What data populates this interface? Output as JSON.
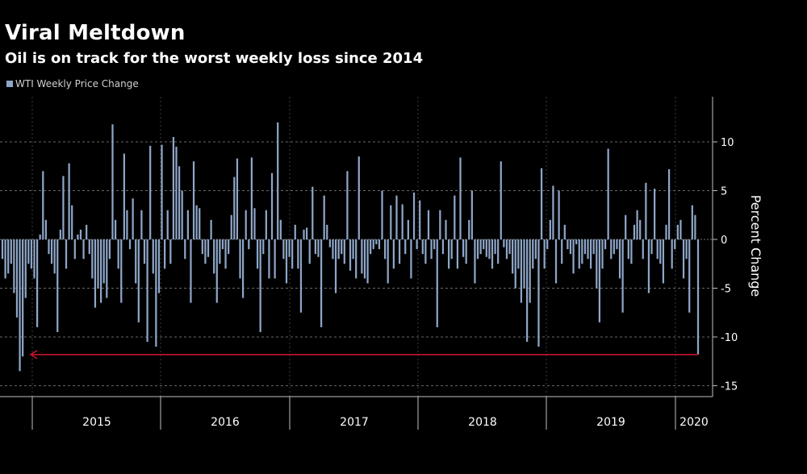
{
  "colors": {
    "bar": "#8ea6c8",
    "arrow": "#c4132f",
    "grid": "#8a8a8a",
    "text": "#ffffff",
    "axis": "#bfbfbf"
  },
  "chart_data": {
    "type": "bar",
    "title": "Viral Meltdown",
    "subtitle": "Oil is on track for the worst weekly loss since 2014",
    "legend": [
      "WTI Weekly Price Change"
    ],
    "ylabel": "Percent Change",
    "ylim": [
      -16,
      15
    ],
    "yticks": [
      10,
      5,
      0,
      -5,
      -10,
      -15
    ],
    "year_labels": [
      "2015",
      "2016",
      "2017",
      "2018",
      "2019",
      "2020"
    ],
    "grid": "horizontal dashed",
    "legend_position": "top-left",
    "annotation": "arrow from latest week back to late 2014 weekly loss (about -11.8%)",
    "x_start": "2014-11-14",
    "x_interval": "weekly",
    "series": [
      {
        "values": [
          -2.0,
          -4.0,
          -3.5,
          -2.5,
          -5.5,
          -8.0,
          -13.5,
          -12.0,
          -6.0,
          -2.5,
          -3.0,
          -4.0,
          -9.0,
          0.5,
          7.0,
          2.0,
          -1.5,
          -2.5,
          -3.5,
          -9.5,
          1.0,
          6.5,
          -3.0,
          7.8,
          3.5,
          -2.0,
          0.5,
          1.0,
          -2.0,
          1.5,
          -1.5,
          -4.0,
          -7.0,
          -5.0,
          -6.5,
          -4.5,
          -6.0,
          -2.0,
          11.8,
          2.0,
          -3.0,
          -6.5,
          8.8,
          3.0,
          -1.0,
          4.2,
          -4.5,
          -8.5,
          3.0,
          -2.5,
          -10.5,
          9.6,
          -3.5,
          -11.0,
          -5.5,
          9.7,
          -3.0,
          3.0,
          -2.5,
          10.5,
          9.5,
          7.5,
          5.0,
          -2.0,
          3.0,
          -6.5,
          8.0,
          3.5,
          3.2,
          -1.5,
          -2.5,
          -1.8,
          2.0,
          -3.5,
          -6.5,
          -2.5,
          -1.0,
          -3.0,
          -1.5,
          2.5,
          6.4,
          8.3,
          -4.0,
          -6.0,
          3.0,
          -1.0,
          8.4,
          3.2,
          -3.0,
          -9.5,
          -1.5,
          3.0,
          -4.0,
          6.8,
          -4.0,
          12.0,
          2.0,
          -2.0,
          -4.5,
          -1.8,
          -3.0,
          1.5,
          -3.0,
          -7.5,
          1.0,
          1.2,
          -2.5,
          5.4,
          -1.5,
          -1.8,
          -9.0,
          4.5,
          1.5,
          -0.8,
          -2.0,
          -5.5,
          -2.0,
          -1.5,
          -2.5,
          7.0,
          -3.2,
          -2.0,
          -4.0,
          8.5,
          -3.5,
          -4.0,
          -4.5,
          -1.5,
          -1.0,
          -0.5,
          -1.0,
          5.0,
          -2.0,
          -4.5,
          3.5,
          -3.0,
          4.5,
          -2.5,
          3.6,
          -1.5,
          2.0,
          -4.0,
          4.8,
          -1.0,
          4.0,
          -1.5,
          -2.5,
          3.0,
          -2.0,
          -1.0,
          -9.0,
          3.0,
          -1.5,
          2.0,
          -3.0,
          -2.0,
          4.5,
          -3.0,
          8.4,
          -1.8,
          -2.5,
          2.0,
          5.0,
          -4.5,
          -2.0,
          -1.5,
          -1.0,
          -1.8,
          -2.0,
          -3.0,
          -1.5,
          -2.5,
          8.0,
          -0.8,
          -2.0,
          -1.5,
          -3.5,
          -5.0,
          -3.0,
          -6.5,
          -5.0,
          -10.5,
          -6.5,
          -3.0,
          -2.0,
          -11.0,
          7.3,
          -3.0,
          -1.0,
          2.0,
          5.5,
          -4.5,
          5.0,
          -2.5,
          1.5,
          -1.0,
          -1.5,
          -3.5,
          -0.5,
          -3.0,
          -2.5,
          -1.5,
          -2.0,
          -3.0,
          -1.5,
          -5.0,
          -8.5,
          -3.0,
          -1.0,
          9.3,
          -2.0,
          -1.5,
          -1.0,
          -4.0,
          -7.5,
          2.5,
          -2.0,
          -2.5,
          1.5,
          3.0,
          2.0,
          -2.0,
          5.8,
          -5.5,
          -1.5,
          5.2,
          -2.0,
          -2.5,
          -4.5,
          1.5,
          7.2,
          -3.0,
          -1.0,
          1.5,
          2.0,
          -4.0,
          -2.0,
          -7.5,
          3.5,
          2.5,
          -11.8
        ]
      }
    ]
  }
}
